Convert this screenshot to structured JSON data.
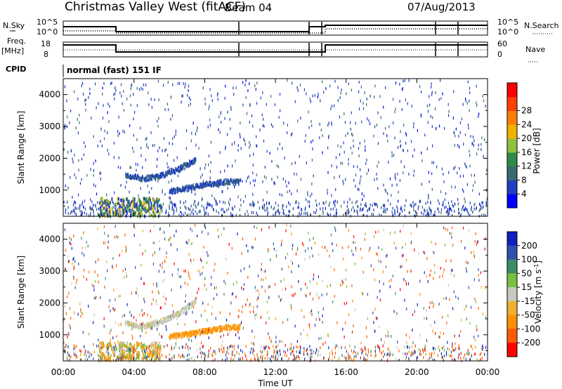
{
  "header": {
    "title": "Christmas Valley West (fitACF)",
    "beam": "Beam 04",
    "date": "07/Aug/2013"
  },
  "summary_panels": {
    "nsky_label": "N.Sky",
    "nsearch_label": "N.Search",
    "nsky_ticks": [
      "10^5",
      "10^0"
    ],
    "nsearch_ticks": [
      "10^5",
      "10^0"
    ],
    "freq_label_line1": "Freq.",
    "freq_label_line2": "[MHz]",
    "freq_ticks": [
      "18",
      "8"
    ],
    "nave_label": "Nave",
    "nave_ticks": [
      "60",
      "0"
    ],
    "cpid_label": "CPID",
    "cpid_text": "normal (fast) 151 IF"
  },
  "colors": {
    "power_scale": [
      "#0000ff",
      "#1f3fbf",
      "#3a6a6e",
      "#2f8a4a",
      "#90c040",
      "#f0b000",
      "#ff8000",
      "#ff4000",
      "#ff0000"
    ],
    "velocity_scale": [
      "#1020c0",
      "#3050b0",
      "#3c8c6a",
      "#7ac040",
      "#c8c8c0",
      "#f0b030",
      "#ff9000",
      "#ff5a00",
      "#ff0000"
    ]
  },
  "chart_data": [
    {
      "type": "heatmap",
      "name": "power",
      "xlabel": "",
      "ylabel": "Slant Range [km]",
      "xlim": [
        0,
        24
      ],
      "ylim": [
        180,
        4500
      ],
      "yticks": [
        1000,
        2000,
        3000,
        4000
      ],
      "colorbar": {
        "label": "Power [dB]",
        "ticks": [
          "4",
          "8",
          "12",
          "16",
          "20",
          "24",
          "28"
        ],
        "range": [
          0,
          30
        ]
      },
      "features": [
        {
          "kind": "arc",
          "x": [
            3.5,
            4.5,
            5.5,
            6.5,
            7.5
          ],
          "y": [
            1500,
            1400,
            1500,
            1700,
            2000
          ],
          "value": 6
        },
        {
          "kind": "arc",
          "x": [
            6.0,
            7.0,
            8.0,
            9.0,
            10.0
          ],
          "y": [
            1000,
            1100,
            1200,
            1300,
            1300
          ],
          "value": 6
        },
        {
          "kind": "patch",
          "x": [
            2.0,
            5.5
          ],
          "y": [
            180,
            800
          ],
          "value": 10
        },
        {
          "kind": "noise",
          "x": [
            0,
            24
          ],
          "y": [
            180,
            4500
          ],
          "value": 5
        }
      ]
    },
    {
      "type": "heatmap",
      "name": "velocity",
      "xlabel": "Time UT",
      "ylabel": "Slant Range [km]",
      "xlim": [
        0,
        24
      ],
      "ylim": [
        180,
        4500
      ],
      "xticks": [
        "00:00",
        "04:00",
        "08:00",
        "12:00",
        "16:00",
        "20:00",
        "00:00"
      ],
      "yticks": [
        1000,
        2000,
        3000,
        4000
      ],
      "colorbar": {
        "label": "Velocity [m s^-1]",
        "ticks": [
          "200",
          "100",
          "50",
          "15",
          "-15",
          "-50",
          "-100",
          "-200"
        ],
        "range": [
          -250,
          250
        ]
      },
      "features": [
        {
          "kind": "arc",
          "x": [
            3.5,
            4.5,
            5.5,
            6.5,
            7.5
          ],
          "y": [
            1400,
            1300,
            1450,
            1700,
            2100
          ],
          "value": 0
        },
        {
          "kind": "arc",
          "x": [
            6.0,
            7.0,
            8.0,
            9.0,
            10.0
          ],
          "y": [
            1000,
            1050,
            1150,
            1250,
            1300
          ],
          "value": -60
        },
        {
          "kind": "patch",
          "x": [
            2.0,
            5.5
          ],
          "y": [
            180,
            800
          ],
          "value": -5
        },
        {
          "kind": "noise",
          "x": [
            0,
            24
          ],
          "y": [
            180,
            4500
          ],
          "value": 0
        }
      ]
    }
  ]
}
